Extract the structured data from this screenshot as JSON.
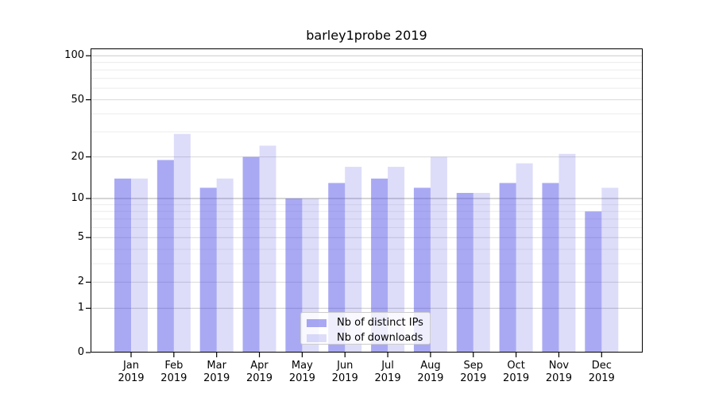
{
  "chart_data": {
    "type": "bar",
    "title": "barley1probe 2019",
    "categories": [
      "Jan",
      "Feb",
      "Mar",
      "Apr",
      "May",
      "Jun",
      "Jul",
      "Aug",
      "Sep",
      "Oct",
      "Nov",
      "Dec"
    ],
    "category_year": "2019",
    "series": [
      {
        "name": "Nb of distinct IPs",
        "color": "rgba(75,75,230,0.48)",
        "values": [
          14,
          19,
          12,
          20,
          10,
          13,
          14,
          12,
          11,
          13,
          13,
          8
        ]
      },
      {
        "name": "Nb of downloads",
        "color": "rgba(75,75,230,0.19)",
        "values": [
          14,
          29,
          14,
          24,
          10,
          17,
          17,
          20,
          11,
          18,
          21,
          12
        ]
      }
    ],
    "yscale": "log1p",
    "ylim": [
      0,
      105
    ],
    "y_ticks": [
      100,
      50,
      20,
      10,
      5,
      2,
      1,
      0
    ],
    "y_minor_gridlines": [
      3,
      4,
      6,
      7,
      8,
      9,
      30,
      40,
      60,
      70,
      80,
      90
    ],
    "grid": true,
    "legend_position": "lower center"
  },
  "colors": {
    "bar_base": "#4b4be6",
    "grid_pow10": "#ababab",
    "grid_major": "#d9d9d9",
    "grid_minor": "#ececec",
    "spine": "#000000",
    "legend_border": "#cccccc"
  }
}
